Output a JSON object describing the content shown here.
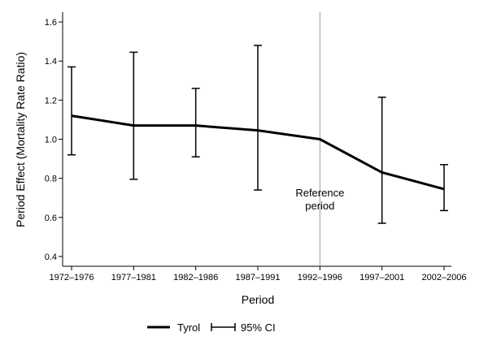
{
  "chart_data": {
    "type": "line",
    "xlabel": "Period",
    "ylabel": "Period Effect (Mortality Rate Ratio)",
    "categories": [
      "1972–1976",
      "1977–1981",
      "1982–1986",
      "1987–1991",
      "1992–1996",
      "1997–2001",
      "2002–2006"
    ],
    "ylim": [
      0.35,
      1.65
    ],
    "yticks": [
      0.4,
      0.6,
      0.8,
      1.0,
      1.2,
      1.4,
      1.6
    ],
    "ytick_labels": [
      "0.4",
      "0.6",
      "0.8",
      "1.0",
      "1.2",
      "1.4",
      "1.6"
    ],
    "series": [
      {
        "name": "Tyrol",
        "values": [
          1.12,
          1.07,
          1.07,
          1.045,
          1.0,
          0.83,
          0.745
        ]
      }
    ],
    "ci": {
      "name": "95% CI",
      "lower": [
        0.92,
        0.795,
        0.91,
        0.74,
        null,
        0.57,
        0.635
      ],
      "upper": [
        1.37,
        1.445,
        1.26,
        1.48,
        null,
        1.215,
        0.87
      ]
    },
    "reference": {
      "category": "1992–1996",
      "label_line1": "Reference",
      "label_line2": "period"
    },
    "grid": false,
    "legend_position": "bottom-center"
  }
}
